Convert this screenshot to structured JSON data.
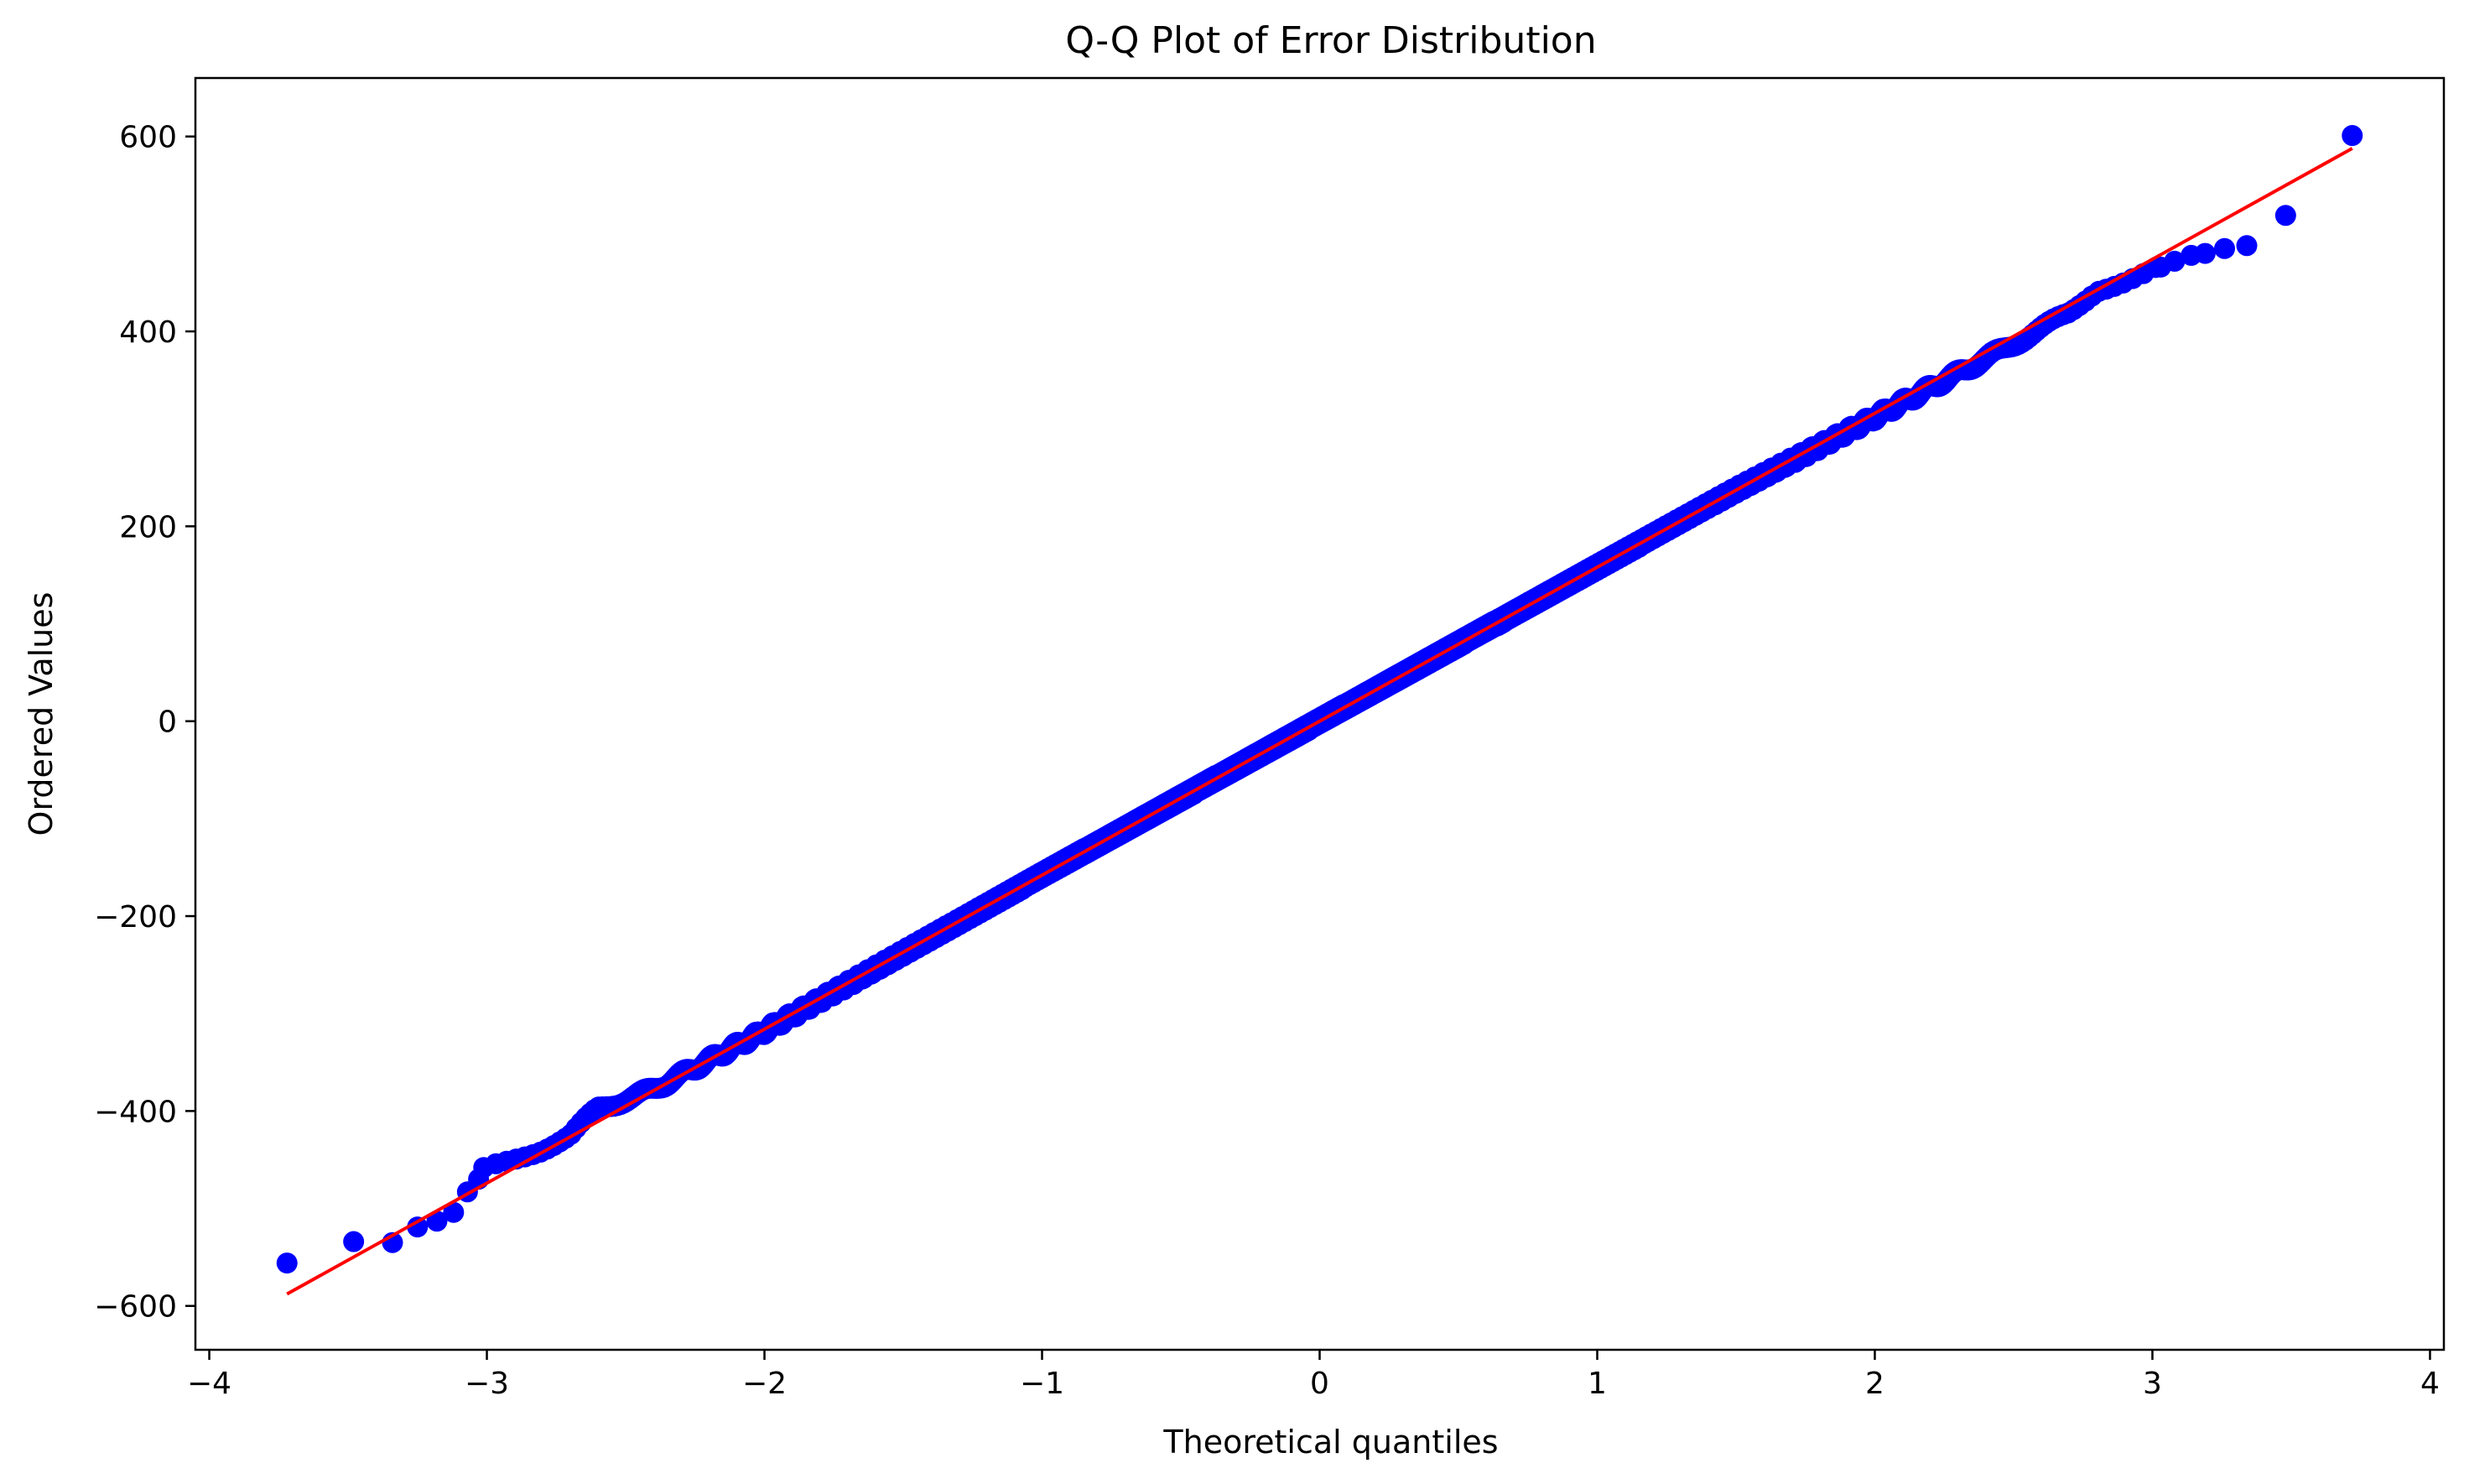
{
  "chart_data": {
    "type": "scatter",
    "title": "Q-Q Plot of Error Distribution",
    "xlabel": "Theoretical quantiles",
    "ylabel": "Ordered Values",
    "xlim": [
      -4.05,
      4.05
    ],
    "ylim": [
      -645,
      660
    ],
    "grid": false,
    "xticks": [
      -4,
      -3,
      -2,
      -1,
      0,
      1,
      2,
      3,
      4
    ],
    "xtick_labels": [
      "−4",
      "−3",
      "−2",
      "−1",
      "0",
      "1",
      "2",
      "3",
      "4"
    ],
    "yticks": [
      -600,
      -400,
      -200,
      0,
      200,
      400,
      600
    ],
    "ytick_labels": [
      "−600",
      "−400",
      "−200",
      "0",
      "200",
      "400",
      "600"
    ],
    "colors": {
      "points": "#0000ff",
      "fit_line": "#ff0000"
    },
    "fit_line": {
      "slope": 158,
      "intercept": 0,
      "x": [
        -3.72,
        3.72
      ]
    },
    "n_points": 5000,
    "tail_points": [
      {
        "x": -3.72,
        "y": -556
      },
      {
        "x": -3.48,
        "y": -534
      },
      {
        "x": -3.34,
        "y": -535
      },
      {
        "x": -3.25,
        "y": -519
      },
      {
        "x": -3.18,
        "y": -513
      },
      {
        "x": -3.12,
        "y": -504
      },
      {
        "x": -3.07,
        "y": -483
      },
      {
        "x": -3.03,
        "y": -470
      },
      {
        "x": 3.03,
        "y": 466
      },
      {
        "x": 3.08,
        "y": 472
      },
      {
        "x": 3.14,
        "y": 478
      },
      {
        "x": 3.19,
        "y": 480
      },
      {
        "x": 3.26,
        "y": 485
      },
      {
        "x": 3.34,
        "y": 488
      },
      {
        "x": 3.48,
        "y": 519
      },
      {
        "x": 3.72,
        "y": 601
      }
    ],
    "deviation_profile": [
      {
        "x": -3.0,
        "y": -458
      },
      {
        "x": -2.9,
        "y": -448
      },
      {
        "x": -2.8,
        "y": -438
      },
      {
        "x": -2.7,
        "y": -426
      },
      {
        "x": -2.6,
        "y": -398
      },
      {
        "x": -2.4,
        "y": -378
      },
      {
        "x": -2.0,
        "y": -318
      },
      {
        "x": -1.5,
        "y": -238
      },
      {
        "x": -1.0,
        "y": -158
      },
      {
        "x": 0.0,
        "y": 0
      },
      {
        "x": 1.0,
        "y": 158
      },
      {
        "x": 1.5,
        "y": 237
      },
      {
        "x": 2.0,
        "y": 312
      },
      {
        "x": 2.4,
        "y": 372
      },
      {
        "x": 2.7,
        "y": 418
      },
      {
        "x": 2.8,
        "y": 444
      },
      {
        "x": 2.9,
        "y": 452
      },
      {
        "x": 3.0,
        "y": 462
      }
    ]
  }
}
